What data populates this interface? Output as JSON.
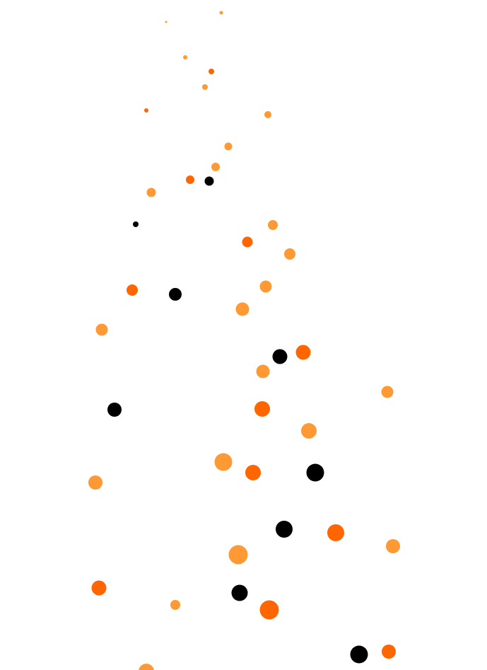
{
  "colors": {
    "background": "#ffffff",
    "light_orange": "#FF9933",
    "dark_orange": "#FF6600",
    "black": "#000000"
  }
}
